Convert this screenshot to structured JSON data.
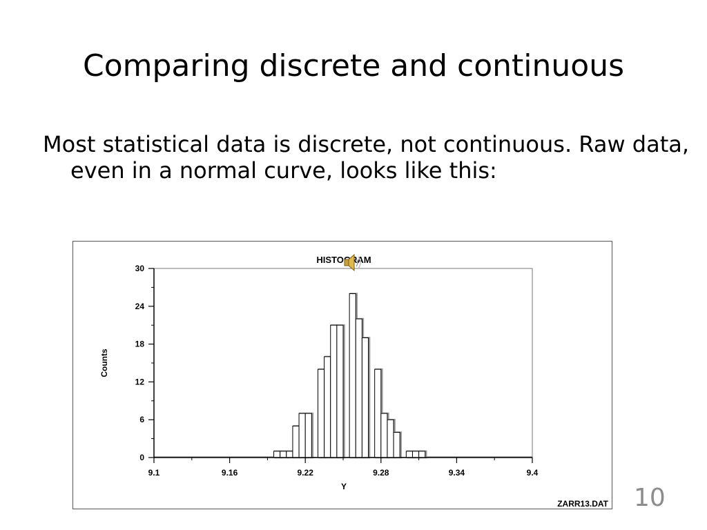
{
  "slide": {
    "title": "Comparing discrete and continuous",
    "body": "Most statistical data is discrete, not continuous. Raw data, even in a normal curve, looks like this:",
    "page_number": "10"
  },
  "icons": {
    "audio": "speaker-icon"
  },
  "chart_data": {
    "type": "bar",
    "title": "HISTOGRAM",
    "xlabel": "Y",
    "ylabel": "Counts",
    "footer": "ZARR13.DAT",
    "xlim": [
      9.1,
      9.4
    ],
    "ylim": [
      0,
      30
    ],
    "xticks": [
      9.1,
      9.16,
      9.22,
      9.28,
      9.34,
      9.4
    ],
    "xtick_labels": [
      "9.1",
      "9.16",
      "9.22",
      "9.28",
      "9.34",
      "9.4"
    ],
    "yticks": [
      0,
      6,
      12,
      18,
      24,
      30
    ],
    "ytick_labels": [
      "0",
      "6",
      "12",
      "18",
      "24",
      "30"
    ],
    "bin_width": 0.005,
    "bin_starts": [
      9.195,
      9.2,
      9.205,
      9.21,
      9.215,
      9.22,
      9.225,
      9.23,
      9.235,
      9.24,
      9.245,
      9.25,
      9.255,
      9.26,
      9.265,
      9.27,
      9.275,
      9.28,
      9.285,
      9.29,
      9.295,
      9.3,
      9.305,
      9.31,
      9.315
    ],
    "values": [
      1,
      1,
      1,
      5,
      7,
      7,
      0,
      14,
      16,
      21,
      21,
      0,
      26,
      22,
      19,
      0,
      14,
      7,
      6,
      4,
      0,
      1,
      1,
      1,
      0
    ],
    "colors": {
      "bar_stroke": "#000000",
      "bar_shadow": "#9a9a9a",
      "axis": "#000000"
    }
  }
}
